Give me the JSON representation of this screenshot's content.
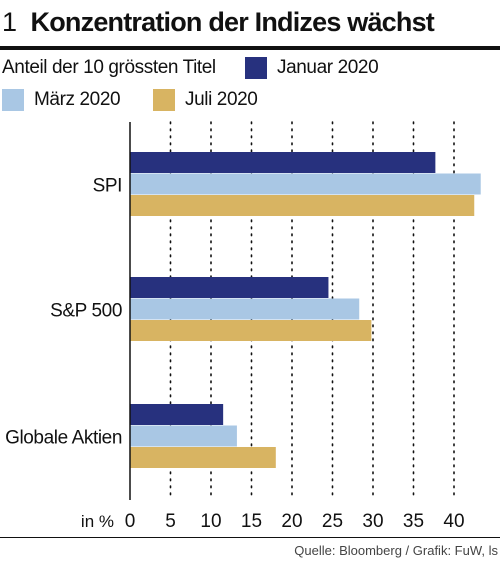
{
  "header": {
    "number": "1",
    "title": "Konzentration der Indizes wächst"
  },
  "source": "Quelle: Bloomberg / Grafik: FuW, ls",
  "chart_data": {
    "type": "bar",
    "orientation": "horizontal",
    "title": "Konzentration der Indizes wächst",
    "subtitle": "Anteil der 10 grössten Titel",
    "unit_label": "in %",
    "categories": [
      "SPI",
      "S&P 500",
      "Globale Aktien"
    ],
    "series": [
      {
        "name": "Januar 2020",
        "color": "#27317e",
        "values": [
          37.7,
          24.5,
          11.5
        ]
      },
      {
        "name": "März 2020",
        "color": "#a9c7e4",
        "values": [
          43.3,
          28.3,
          13.2
        ]
      },
      {
        "name": "Juli 2020",
        "color": "#d8b462",
        "values": [
          42.5,
          29.8,
          18.0
        ]
      }
    ],
    "xlim": [
      0,
      45
    ],
    "xticks": [
      0,
      5,
      10,
      15,
      20,
      25,
      30,
      35,
      40
    ],
    "grid": "vertical dotted",
    "legend_position": "top"
  }
}
